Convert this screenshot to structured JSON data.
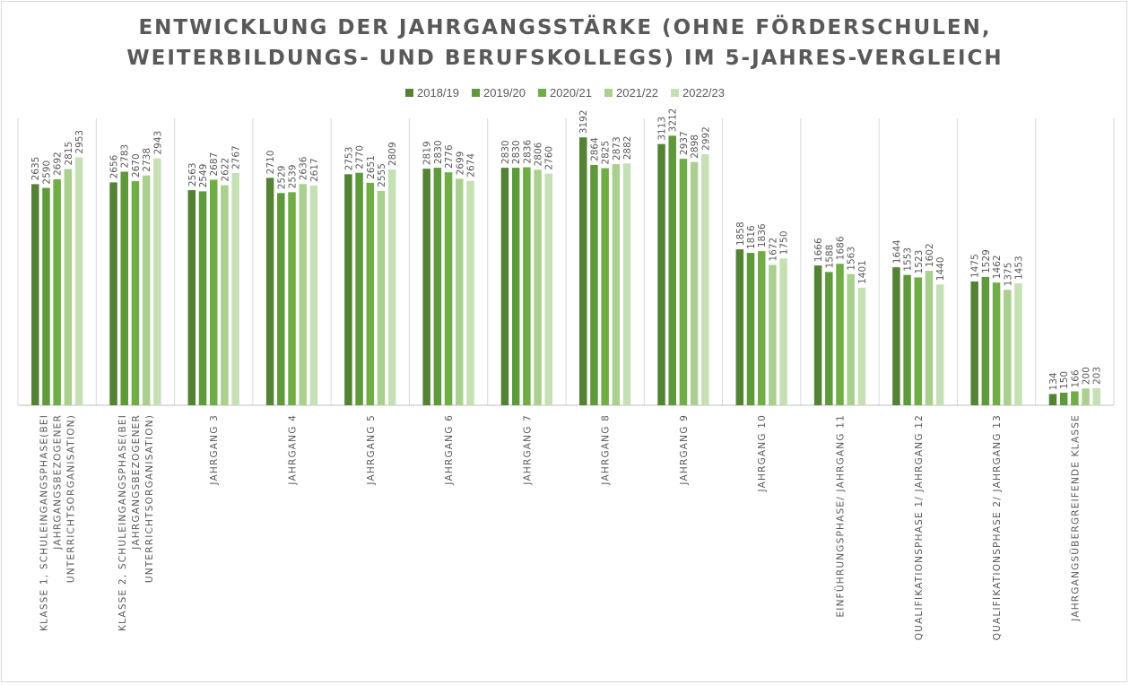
{
  "chart_data": {
    "type": "bar",
    "title_line1": "ENTWICKLUNG DER JAHRGANGSSTÄRKE (OHNE FÖRDERSCHULEN,",
    "title_line2": "WEITERBILDUNGS- UND BERUFSKOLLEGS) IM 5-JAHRES-VERGLEICH",
    "legend_position": "top",
    "grid": false,
    "categories": [
      [
        "KLASSE 1, SCHULEINGANGSPHASE(BEI",
        "JAHRGANGSBEZOGENER",
        "UNTERRICHTSORGANISATION)"
      ],
      [
        "KLASSE 2, SCHULEINGANGSPHASE(BEI",
        "JAHRGANGSBEZOGENER",
        "UNTERRICHTSORGANISATION)"
      ],
      [
        "JAHRGANG 3"
      ],
      [
        "JAHRGANG 4"
      ],
      [
        "JAHRGANG 5"
      ],
      [
        "JAHRGANG 6"
      ],
      [
        "JAHRGANG 7"
      ],
      [
        "JAHRGANG 8"
      ],
      [
        "JAHRGANG 9"
      ],
      [
        "JAHRGANG 10"
      ],
      [
        "EINFÜHRUNGSPHASE/ JAHRGANG 11"
      ],
      [
        "QUALIFIKATIONSPHASE 1/ JAHRGANG 12"
      ],
      [
        "QUALIFIKATIONSPHASE 2/ JAHRGANG 13"
      ],
      [
        "JAHRGANGSÜBERGREIFENDE KLASSE"
      ]
    ],
    "series": [
      {
        "name": "2018/19",
        "color": "#548235",
        "values": [
          2635,
          2656,
          2563,
          2710,
          2753,
          2819,
          2830,
          3192,
          3113,
          1858,
          1666,
          1644,
          1475,
          134
        ]
      },
      {
        "name": "2019/20",
        "color": "#5e9a3b",
        "values": [
          2590,
          2783,
          2549,
          2529,
          2770,
          2830,
          2830,
          2864,
          3212,
          1816,
          1588,
          1553,
          1529,
          150
        ]
      },
      {
        "name": "2020/21",
        "color": "#70ad47",
        "values": [
          2692,
          2670,
          2687,
          2539,
          2651,
          2776,
          2836,
          2825,
          2937,
          1836,
          1686,
          1523,
          1462,
          166
        ]
      },
      {
        "name": "2021/22",
        "color": "#a9d08e",
        "values": [
          2815,
          2738,
          2622,
          2636,
          2555,
          2699,
          2806,
          2873,
          2898,
          1672,
          1563,
          1602,
          1375,
          200
        ]
      },
      {
        "name": "2022/23",
        "color": "#c5e0b4",
        "values": [
          2953,
          2943,
          2767,
          2617,
          2809,
          2674,
          2760,
          2882,
          2992,
          1750,
          1401,
          1440,
          1453,
          203
        ]
      }
    ]
  }
}
